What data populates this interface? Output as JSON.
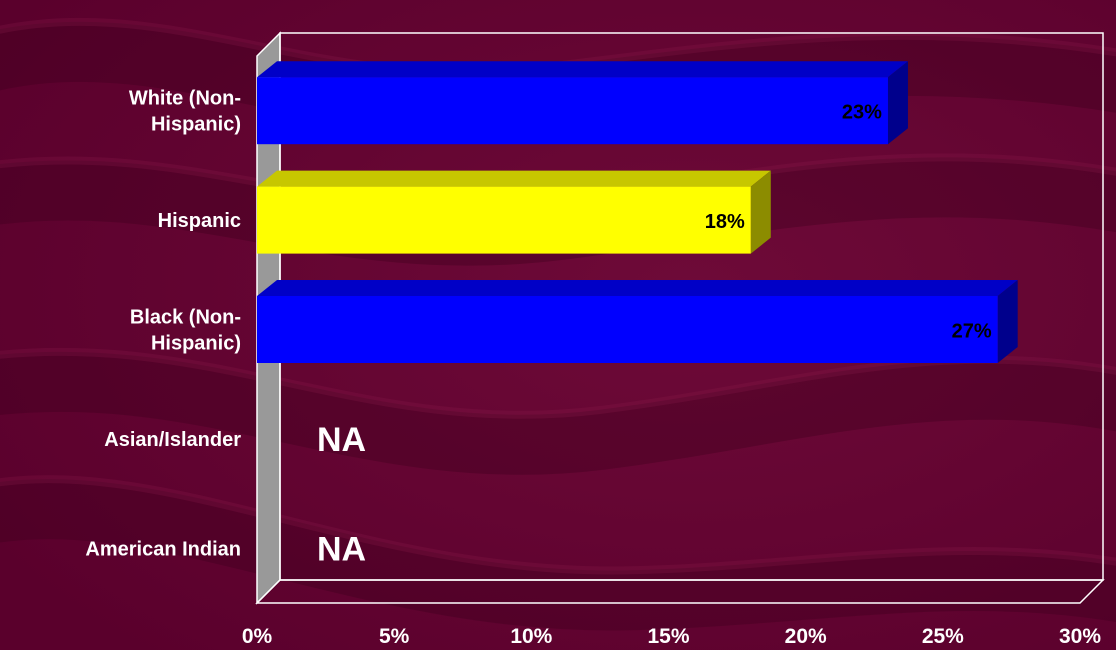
{
  "colors": {
    "background": "#660033",
    "axis_line": "#FFFFFF",
    "text": "#FFFFFF",
    "wall": "#999999"
  },
  "chart_data": {
    "type": "bar",
    "orientation": "horizontal",
    "style": "3d",
    "categories": [
      "White (Non-Hispanic)",
      "Hispanic",
      "Black (Non-Hispanic)",
      "Asian/Islander",
      "American Indian"
    ],
    "category_label_lines": [
      [
        "White (Non-",
        "Hispanic)"
      ],
      [
        "Hispanic"
      ],
      [
        "Black (Non-",
        "Hispanic)"
      ],
      [
        "Asian/Islander"
      ],
      [
        "American Indian"
      ]
    ],
    "values": [
      23,
      18,
      27,
      null,
      null
    ],
    "value_labels": [
      "23%",
      "18%",
      "27%",
      "NA",
      "NA"
    ],
    "bar_colors": [
      "#0000FF",
      "#FFFF00",
      "#0000FF",
      null,
      null
    ],
    "x_ticks": [
      "0%",
      "5%",
      "10%",
      "15%",
      "20%",
      "25%",
      "30%"
    ],
    "xlim": [
      0,
      30
    ],
    "grid": false,
    "legend": "none"
  }
}
